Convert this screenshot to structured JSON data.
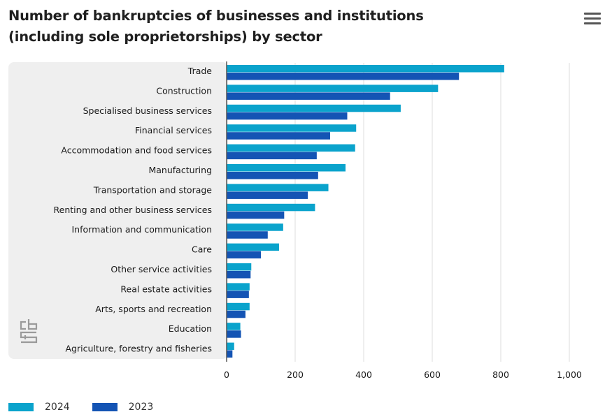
{
  "header": {
    "title_line1": "Number of bankruptcies of businesses and institutions",
    "title_line2": "(including sole proprietorships) by sector"
  },
  "menu": {
    "icon": "hamburger-menu-icon"
  },
  "logo": {
    "text": "cbs"
  },
  "colors": {
    "series_2024": "#0aa3cc",
    "series_2023": "#1454b4",
    "panel": "#efefef",
    "grid": "#dcdcdc"
  },
  "chart_data": {
    "type": "bar",
    "orientation": "horizontal",
    "categories": [
      "Trade",
      "Construction",
      "Specialised business services",
      "Financial services",
      "Accommodation and food services",
      "Manufacturing",
      "Transportation and storage",
      "Renting and other business services",
      "Information and communication",
      "Care",
      "Other service activities",
      "Real estate activities",
      "Arts, sports and recreation",
      "Education",
      "Agriculture, forestry and fisheries"
    ],
    "series": [
      {
        "name": "2024",
        "color": "#0aa3cc",
        "values": [
          810,
          617,
          508,
          378,
          375,
          347,
          297,
          258,
          165,
          153,
          72,
          67,
          67,
          40,
          22
        ]
      },
      {
        "name": "2023",
        "color": "#1454b4",
        "values": [
          678,
          477,
          352,
          302,
          263,
          267,
          237,
          168,
          120,
          100,
          70,
          65,
          55,
          42,
          17
        ]
      }
    ],
    "xlim": [
      0,
      1000
    ],
    "xticks": [
      0,
      200,
      400,
      600,
      800,
      1000
    ],
    "xtick_labels": [
      "0",
      "200",
      "400",
      "600",
      "800",
      "1,000"
    ],
    "grid": true,
    "legend_position": "bottom-left"
  }
}
